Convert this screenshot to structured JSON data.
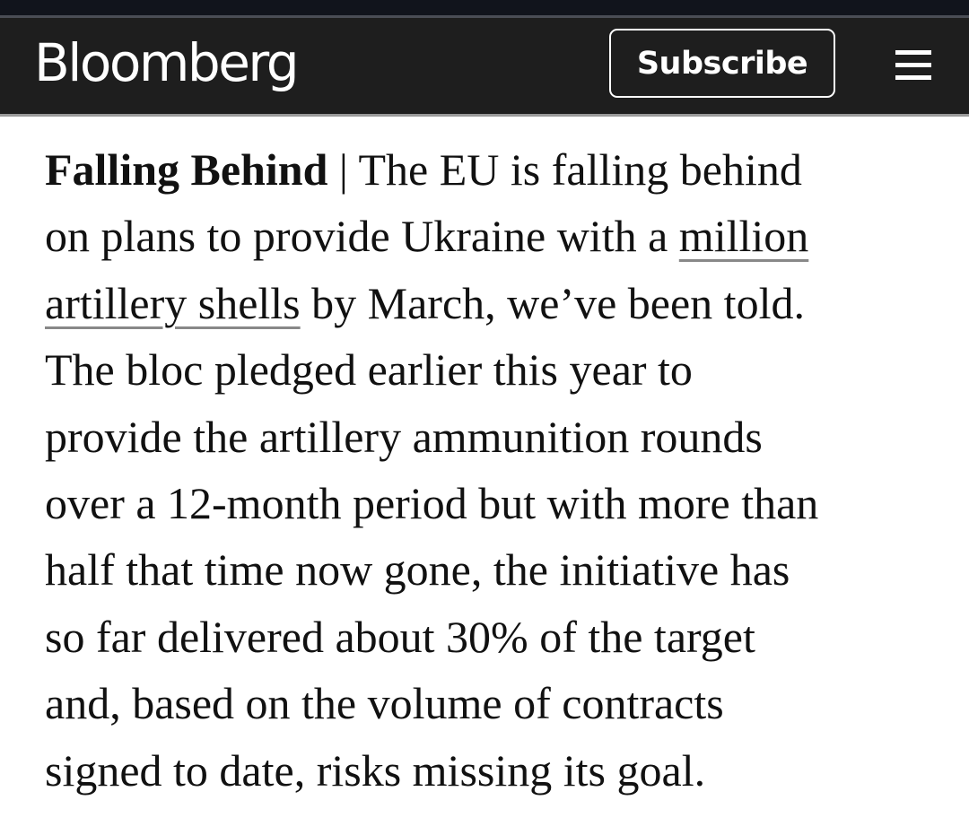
{
  "header": {
    "logo": "Bloomberg",
    "subscribe_label": "Subscribe",
    "menu_icon": "hamburger-menu-icon"
  },
  "colors": {
    "header_bg": "#1e1e1e",
    "text": "#111111",
    "link_underline": "#888888"
  },
  "article": {
    "label": "Falling Behind",
    "separator": "|",
    "l1": " The EU is falling behind",
    "l2": "on plans to provide Ukraine with a ",
    "link_part1": "million",
    "link_part2": "artillery shells",
    "l3": " by March, we’ve been told.",
    "lines": [
      "The bloc pledged earlier this year to",
      "provide the artillery ammunition rounds",
      "over a 12-month period but with more than",
      "half that time now gone, the initiative has",
      "so far delivered about 30% of the target",
      "and, based on the volume of contracts",
      "signed to date, risks missing its goal."
    ]
  }
}
